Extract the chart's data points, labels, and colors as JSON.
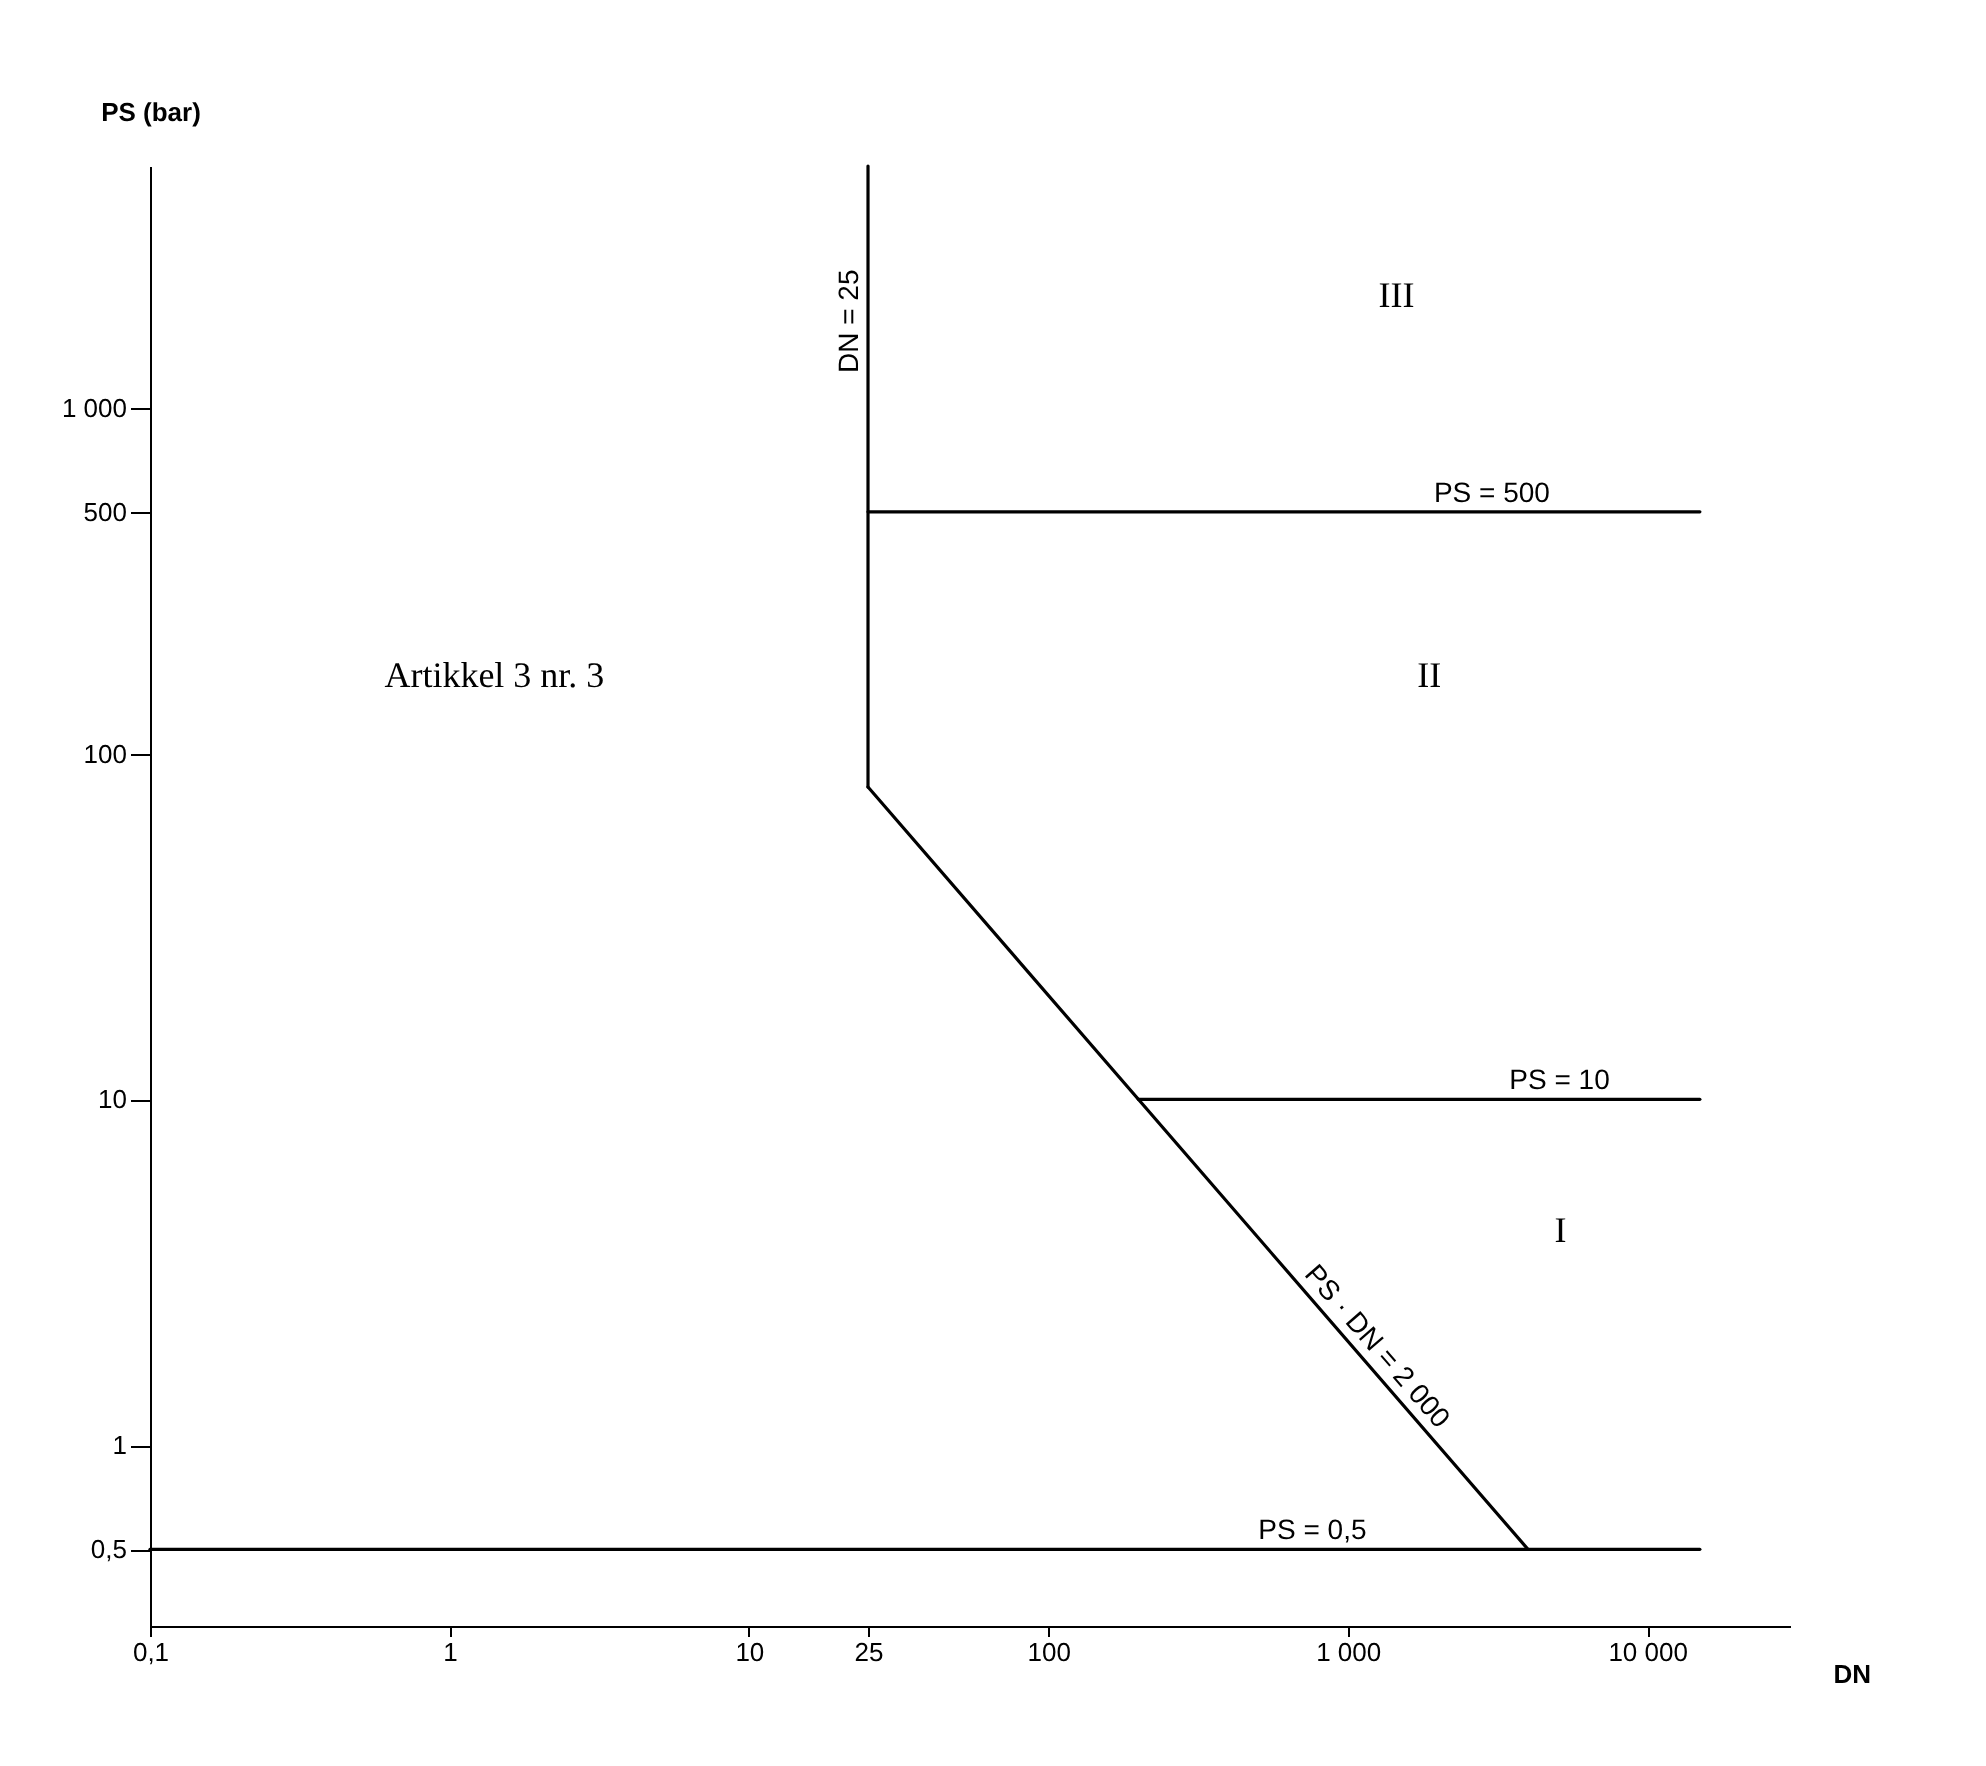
{
  "chart_data": {
    "type": "line",
    "xlabel": "DN",
    "ylabel": "PS (bar)",
    "log": "xy",
    "xlim": [
      0.1,
      30000
    ],
    "ylim": [
      0.3,
      5000
    ],
    "xticks": [
      {
        "value": 0.1,
        "label": "0,1"
      },
      1,
      10,
      25,
      100,
      {
        "value": 1000,
        "label": "1 000"
      },
      {
        "value": 10000,
        "label": "10 000"
      }
    ],
    "yticks": [
      {
        "value": 0.5,
        "label": "0,5"
      },
      1,
      10,
      100,
      500,
      {
        "value": 1000,
        "label": "1 000"
      }
    ],
    "series": [
      {
        "name": "DN = 25",
        "color": "#000000",
        "x": [
          25,
          25
        ],
        "values": [
          80,
          5000
        ]
      },
      {
        "name": "PS · DN = 2 000",
        "color": "#000000",
        "x": [
          25,
          4000
        ],
        "values": [
          80,
          0.5
        ]
      },
      {
        "name": "PS = 500",
        "color": "#000000",
        "x": [
          25,
          15000
        ],
        "values": [
          500,
          500
        ]
      },
      {
        "name": "PS = 10",
        "color": "#000000",
        "x": [
          200,
          15000
        ],
        "values": [
          10,
          10
        ]
      },
      {
        "name": "PS = 0,5",
        "color": "#000000",
        "x": [
          0.1,
          15000
        ],
        "values": [
          0.5,
          0.5
        ]
      }
    ],
    "annotations": [
      "Artikkel 3 nr. 3",
      "III",
      "II",
      "I"
    ]
  }
}
